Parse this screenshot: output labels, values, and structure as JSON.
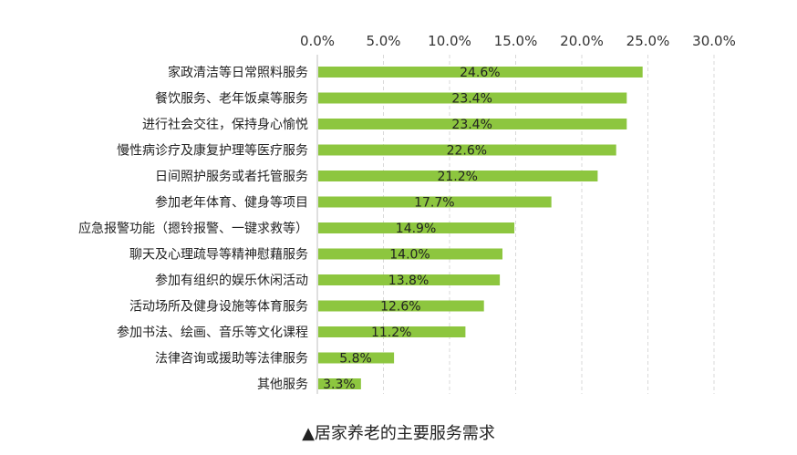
{
  "caption": "▲居家养老的主要服务需求",
  "chart_data": {
    "type": "bar",
    "orientation": "horizontal",
    "categories": [
      "家政清洁等日常照料服务",
      "餐饮服务、老年饭桌等服务",
      "进行社会交往，保持身心愉悦",
      "慢性病诊疗及康复护理等医疗服务",
      "日间照护服务或者托管服务",
      "参加老年体育、健身等项目",
      "应急报警功能（摁铃报警、一键求救等）",
      "聊天及心理疏导等精神慰藉服务",
      "参加有组织的娱乐休闲活动",
      "活动场所及健身设施等体育服务",
      "参加书法、绘画、音乐等文化课程",
      "法律咨询或援助等法律服务",
      "其他服务"
    ],
    "values": [
      24.6,
      23.4,
      23.4,
      22.6,
      21.2,
      17.7,
      14.9,
      14.0,
      13.8,
      12.6,
      11.2,
      5.8,
      3.3
    ],
    "value_labels": [
      "24.6%",
      "23.4%",
      "23.4%",
      "22.6%",
      "21.2%",
      "17.7%",
      "14.9%",
      "14.0%",
      "13.8%",
      "12.6%",
      "11.2%",
      "5.8%",
      "3.3%"
    ],
    "xlim": [
      0,
      30
    ],
    "ticks": [
      0,
      5,
      10,
      15,
      20,
      25,
      30
    ],
    "tick_labels": [
      "0.0%",
      "5.0%",
      "10.0%",
      "15.0%",
      "20.0%",
      "25.0%",
      "30.0%"
    ],
    "xaxis_position": "top",
    "grid": true,
    "bar_color": "#8dc63f"
  }
}
